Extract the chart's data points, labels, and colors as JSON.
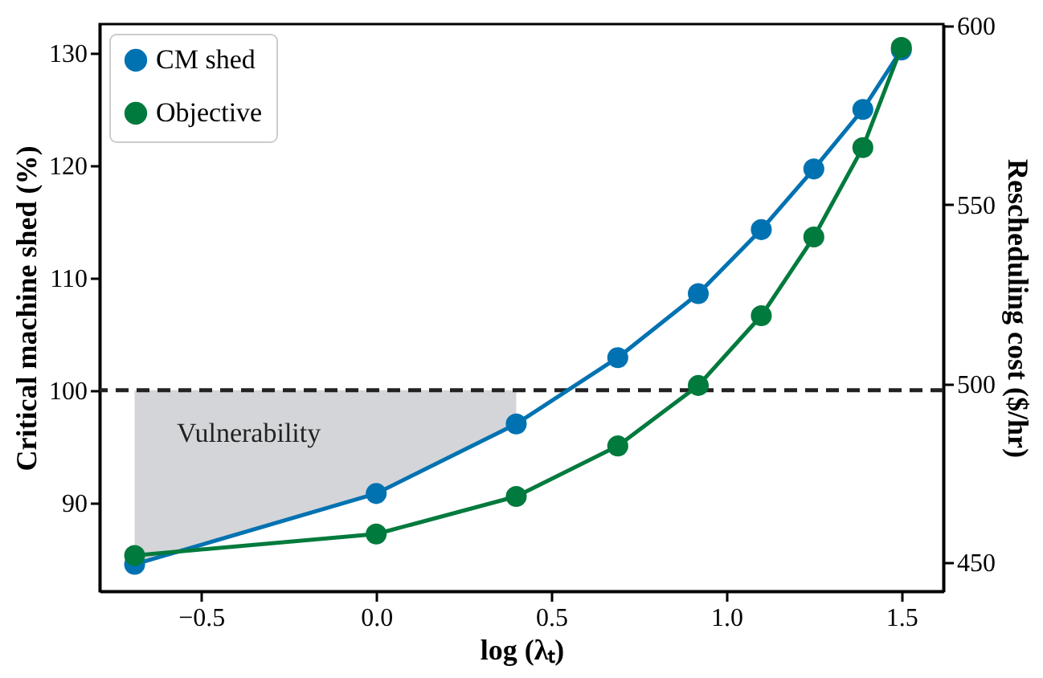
{
  "chart_data": {
    "type": "line",
    "xlabel": "log (λₜ)",
    "ylabel": "Critical machine shed (%)",
    "y2label": "Rescheduling cost ($/hr)",
    "xlim": [
      -0.79,
      1.62
    ],
    "xticks": [
      {
        "value": -0.5,
        "label": "−0.5"
      },
      {
        "value": 0,
        "label": "0.0"
      },
      {
        "value": 0.5,
        "label": "0.5"
      },
      {
        "value": 1,
        "label": "1.0"
      },
      {
        "value": 1.5,
        "label": "1.5"
      }
    ],
    "ylim": [
      82.1,
      132.6
    ],
    "yticks": [
      90,
      100,
      110,
      120,
      130
    ],
    "y2lim": [
      442,
      600.5
    ],
    "y2ticks": [
      450,
      500,
      550,
      600
    ],
    "series": [
      {
        "name": "CM shed",
        "color": "#0072b2",
        "x": [
          -0.69,
          0.0,
          0.4,
          0.69,
          0.92,
          1.1,
          1.25,
          1.39,
          1.5
        ],
        "values": [
          84.5,
          90.8,
          97,
          102.9,
          108.6,
          114.3,
          119.7,
          125,
          130.3
        ],
        "lower": [
          84.5,
          90.8,
          97,
          null,
          null,
          null,
          null,
          null,
          null
        ],
        "upper": [
          100,
          100,
          100,
          null,
          null,
          null,
          null,
          null,
          null
        ]
      },
      {
        "name": "Objective",
        "color": "#007a3d",
        "axis": "y2",
        "x": [
          -0.69,
          0.0,
          0.4,
          0.69,
          0.92,
          1.1,
          1.25,
          1.39,
          1.5
        ],
        "values": [
          452,
          458,
          468.5,
          482.6,
          499.5,
          519,
          541,
          566,
          594
        ]
      }
    ],
    "ref_lines": [
      {
        "axis": "y",
        "value": 100,
        "color": "#222222",
        "line_style": "dashed"
      }
    ],
    "annotations": [
      "Vulnerability"
    ],
    "marker": "circle",
    "line_style": "solid",
    "grid": false,
    "legend": "top left"
  }
}
